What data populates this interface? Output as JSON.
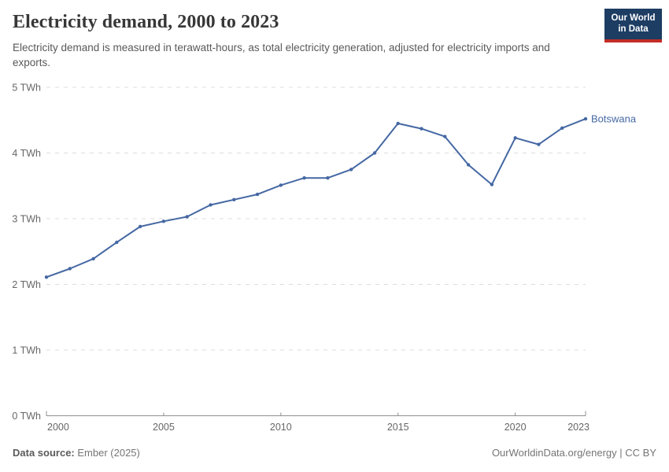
{
  "header": {
    "title": "Electricity demand, 2000 to 2023",
    "subtitle": "Electricity demand is measured in terawatt-hours, as total electricity generation, adjusted for electricity imports and exports.",
    "logo": {
      "line1": "Our World",
      "line2": "in Data",
      "bg_color": "#1d3d63",
      "bar_color": "#c32d27"
    }
  },
  "chart_data": {
    "type": "line",
    "title": "Electricity demand, 2000 to 2023",
    "unit": "TWh",
    "xlim": [
      2000,
      2023
    ],
    "ylim": [
      0,
      5
    ],
    "grid": "horizontal-dashed",
    "legend_position": "end-of-line-label",
    "x": [
      2000,
      2001,
      2002,
      2003,
      2004,
      2005,
      2006,
      2007,
      2008,
      2009,
      2010,
      2011,
      2012,
      2013,
      2014,
      2015,
      2016,
      2017,
      2018,
      2019,
      2020,
      2021,
      2022,
      2023
    ],
    "series": [
      {
        "name": "Botswana",
        "color": "#4568a3",
        "values": [
          2.11,
          2.24,
          2.39,
          2.64,
          2.88,
          2.96,
          3.03,
          3.21,
          3.29,
          3.37,
          3.51,
          3.62,
          3.62,
          3.75,
          4.0,
          4.45,
          4.37,
          4.25,
          3.82,
          3.52,
          4.23,
          4.13,
          4.38,
          4.52
        ]
      }
    ],
    "x_ticks": [
      {
        "value": 2000,
        "label": "2000",
        "align": "start"
      },
      {
        "value": 2005,
        "label": "2005"
      },
      {
        "value": 2010,
        "label": "2010"
      },
      {
        "value": 2015,
        "label": "2015"
      },
      {
        "value": 2020,
        "label": "2020"
      },
      {
        "value": 2023,
        "label": "2023",
        "align": "end"
      }
    ],
    "y_ticks": [
      {
        "value": 0,
        "label": "0 TWh"
      },
      {
        "value": 1,
        "label": "1 TWh"
      },
      {
        "value": 2,
        "label": "2 TWh"
      },
      {
        "value": 3,
        "label": "3 TWh"
      },
      {
        "value": 4,
        "label": "4 TWh"
      },
      {
        "value": 5,
        "label": "5 TWh"
      }
    ],
    "end_label": "Botswana",
    "axis_color": "#8f8f8f",
    "grid_color": "#dddddd",
    "tick_label_color": "#666666"
  },
  "footer": {
    "data_source_label": "Data source:",
    "data_source_value": "Ember (2025)",
    "attribution": "OurWorldinData.org/energy | CC BY"
  }
}
